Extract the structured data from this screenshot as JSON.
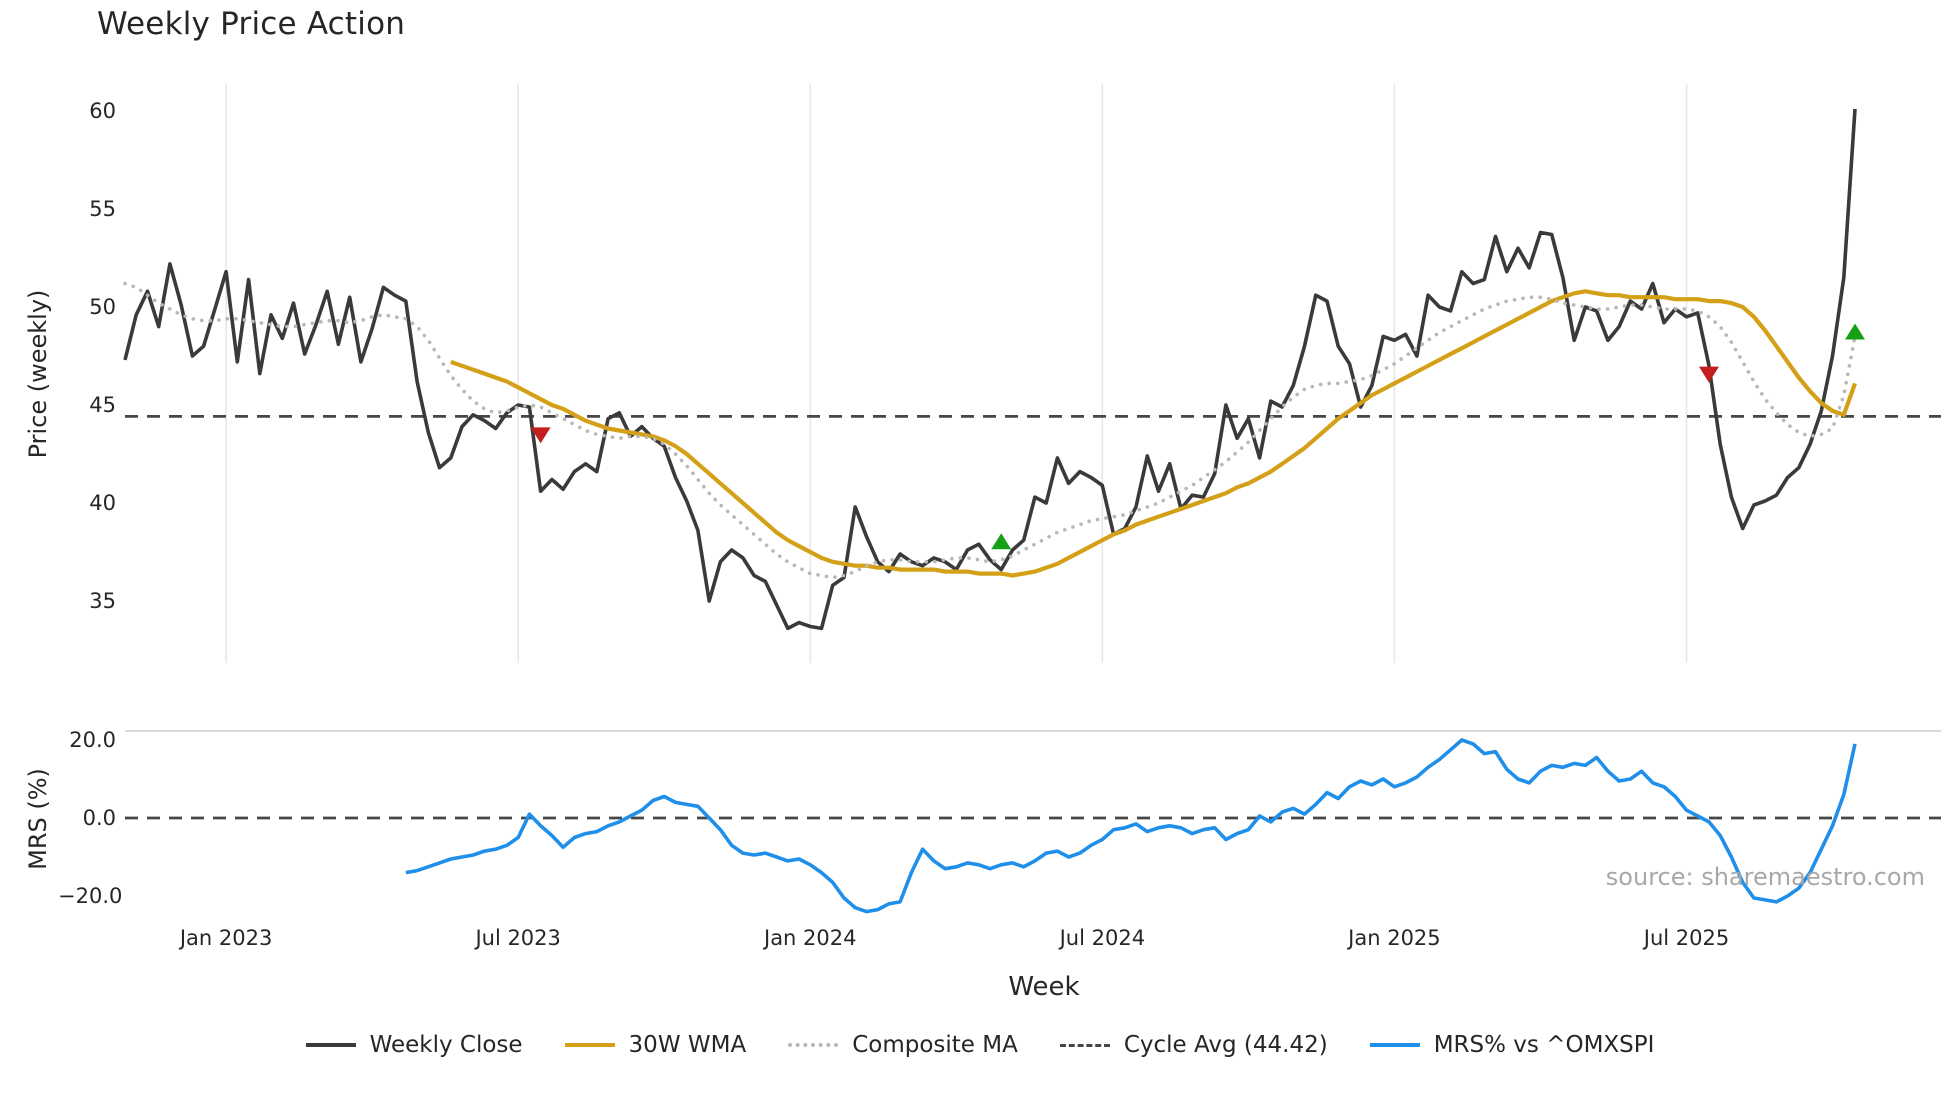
{
  "title": "Weekly Price Action",
  "watermark": "source: sharemaestro.com",
  "axes": {
    "price_ylabel": "Price (weekly)",
    "mrs_ylabel": "MRS (%)",
    "xlabel": "Week"
  },
  "legend": [
    {
      "label": "Weekly Close",
      "style": "solid",
      "color": "#3a3a3a"
    },
    {
      "label": "30W WMA",
      "style": "solid",
      "color": "#d4a017"
    },
    {
      "label": "Composite MA",
      "style": "dotted",
      "color": "#b8b8b8"
    },
    {
      "label": "Cycle Avg (44.42)",
      "style": "dashed",
      "color": "#474747"
    },
    {
      "label": "MRS% vs ^OMXSPI",
      "style": "solid",
      "color": "#1f8fea"
    }
  ],
  "chart_data": {
    "type": "line",
    "title": "Weekly Price Action",
    "xlabel": "Week",
    "x_unit": "weekly index, Nov 2022 - Oct 2025",
    "grid": "vertical gridlines at half-year ticks (price panel only)",
    "legend_position": "bottom center",
    "x_ticks": [
      {
        "index": 9,
        "label": "Jan 2023"
      },
      {
        "index": 35,
        "label": "Jul 2023"
      },
      {
        "index": 61,
        "label": "Jan 2024"
      },
      {
        "index": 87,
        "label": "Jul 2024"
      },
      {
        "index": 113,
        "label": "Jan 2025"
      },
      {
        "index": 139,
        "label": "Jul 2025"
      }
    ],
    "price_panel": {
      "ylabel": "Price (weekly)",
      "ylim": [
        33,
        61.5
      ],
      "yticks": [
        35,
        40,
        45,
        50,
        55,
        60
      ],
      "ytick_labels": [
        "35",
        "40",
        "45",
        "50",
        "55",
        "60"
      ],
      "cycle_avg": 44.42,
      "cycle_avg_color": "#474747",
      "series": [
        {
          "name": "Weekly Close",
          "color": "#3a3a3a",
          "style": "solid",
          "values": [
            47.3,
            49.6,
            50.8,
            49.0,
            52.2,
            50.1,
            47.5,
            48.0,
            49.9,
            51.8,
            47.2,
            51.4,
            46.6,
            49.6,
            48.4,
            50.2,
            47.6,
            49.1,
            50.8,
            48.1,
            50.5,
            47.2,
            48.9,
            51.0,
            50.6,
            50.3,
            46.2,
            43.6,
            41.8,
            42.3,
            43.9,
            44.5,
            44.2,
            43.8,
            44.6,
            45.0,
            44.9,
            40.6,
            41.2,
            40.7,
            41.6,
            42.0,
            41.6,
            44.3,
            44.6,
            43.4,
            43.9,
            43.3,
            42.9,
            41.3,
            40.1,
            38.6,
            35.0,
            37.0,
            37.6,
            37.2,
            36.3,
            36.0,
            34.8,
            33.6,
            33.9,
            33.7,
            33.6,
            35.8,
            36.2,
            39.8,
            38.3,
            37.0,
            36.5,
            37.4,
            37.0,
            36.8,
            37.2,
            37.0,
            36.6,
            37.6,
            37.9,
            37.1,
            36.6,
            37.6,
            38.1,
            40.3,
            40.0,
            42.3,
            41.0,
            41.6,
            41.3,
            40.9,
            38.4,
            38.7,
            39.8,
            42.4,
            40.6,
            42.0,
            39.7,
            40.4,
            40.3,
            41.5,
            45.0,
            43.3,
            44.3,
            42.3,
            45.2,
            44.9,
            46.0,
            48.0,
            50.6,
            50.3,
            48.0,
            47.1,
            44.9,
            46.0,
            48.5,
            48.3,
            48.6,
            47.5,
            50.6,
            50.0,
            49.8,
            51.8,
            51.2,
            51.4,
            53.6,
            51.8,
            53.0,
            52.0,
            53.8,
            53.7,
            51.5,
            48.3,
            50.0,
            49.8,
            48.3,
            49.0,
            50.3,
            49.9,
            51.2,
            49.2,
            49.9,
            49.5,
            49.7,
            47.0,
            43.0,
            40.3,
            38.7,
            39.9,
            40.1,
            40.4,
            41.3,
            41.8,
            43.0,
            44.7,
            47.5,
            51.5,
            60.1
          ]
        },
        {
          "name": "30W WMA",
          "color": "#d4a017",
          "style": "solid",
          "values": [
            null,
            null,
            null,
            null,
            null,
            null,
            null,
            null,
            null,
            null,
            null,
            null,
            null,
            null,
            null,
            null,
            null,
            null,
            null,
            null,
            null,
            null,
            null,
            null,
            null,
            null,
            null,
            null,
            null,
            47.2,
            47.0,
            46.8,
            46.6,
            46.4,
            46.2,
            45.9,
            45.6,
            45.3,
            45.0,
            44.8,
            44.5,
            44.2,
            44.0,
            43.8,
            43.7,
            43.6,
            43.5,
            43.4,
            43.2,
            42.9,
            42.5,
            42.0,
            41.5,
            41.0,
            40.5,
            40.0,
            39.5,
            39.0,
            38.5,
            38.1,
            37.8,
            37.5,
            37.2,
            37.0,
            36.9,
            36.8,
            36.8,
            36.7,
            36.7,
            36.6,
            36.6,
            36.6,
            36.6,
            36.5,
            36.5,
            36.5,
            36.4,
            36.4,
            36.4,
            36.3,
            36.4,
            36.5,
            36.7,
            36.9,
            37.2,
            37.5,
            37.8,
            38.1,
            38.4,
            38.6,
            38.9,
            39.1,
            39.3,
            39.5,
            39.7,
            39.9,
            40.1,
            40.3,
            40.5,
            40.8,
            41.0,
            41.3,
            41.6,
            42.0,
            42.4,
            42.8,
            43.3,
            43.8,
            44.3,
            44.7,
            45.1,
            45.5,
            45.8,
            46.1,
            46.4,
            46.7,
            47.0,
            47.3,
            47.6,
            47.9,
            48.2,
            48.5,
            48.8,
            49.1,
            49.4,
            49.7,
            50.0,
            50.3,
            50.5,
            50.7,
            50.8,
            50.7,
            50.6,
            50.6,
            50.5,
            50.5,
            50.5,
            50.5,
            50.4,
            50.4,
            50.4,
            50.3,
            50.3,
            50.2,
            50.0,
            49.5,
            48.8,
            48.0,
            47.2,
            46.4,
            45.7,
            45.1,
            44.7,
            44.5,
            46.1
          ]
        },
        {
          "name": "Composite MA",
          "color": "#b8b8b8",
          "style": "dotted",
          "values": [
            51.2,
            51.0,
            50.6,
            50.2,
            49.9,
            49.6,
            49.4,
            49.3,
            49.3,
            49.4,
            49.4,
            49.3,
            49.2,
            49.1,
            49.0,
            49.0,
            49.1,
            49.2,
            49.3,
            49.3,
            49.2,
            49.3,
            49.5,
            49.6,
            49.5,
            49.4,
            49.0,
            48.3,
            47.4,
            46.5,
            45.8,
            45.2,
            44.8,
            44.6,
            44.7,
            44.9,
            45.0,
            44.9,
            44.6,
            44.3,
            44.0,
            43.7,
            43.5,
            43.4,
            43.3,
            43.4,
            43.4,
            43.3,
            43.0,
            42.5,
            41.9,
            41.2,
            40.5,
            39.9,
            39.4,
            38.9,
            38.4,
            37.9,
            37.4,
            37.0,
            36.7,
            36.4,
            36.3,
            36.2,
            36.3,
            36.5,
            36.8,
            37.0,
            37.1,
            37.1,
            37.0,
            37.0,
            37.0,
            37.1,
            37.2,
            37.2,
            37.1,
            37.0,
            37.1,
            37.3,
            37.6,
            37.9,
            38.2,
            38.5,
            38.7,
            38.9,
            39.1,
            39.2,
            39.3,
            39.4,
            39.6,
            39.8,
            40.0,
            40.3,
            40.6,
            40.9,
            41.3,
            41.7,
            42.1,
            42.6,
            43.1,
            43.7,
            44.3,
            44.9,
            45.4,
            45.8,
            46.0,
            46.1,
            46.1,
            46.2,
            46.3,
            46.5,
            46.8,
            47.1,
            47.5,
            47.9,
            48.3,
            48.7,
            49.0,
            49.3,
            49.6,
            49.9,
            50.1,
            50.3,
            50.4,
            50.5,
            50.5,
            50.4,
            50.2,
            50.1,
            50.0,
            49.9,
            49.9,
            50.0,
            50.1,
            50.1,
            50.0,
            49.9,
            49.9,
            49.9,
            49.8,
            49.5,
            49.0,
            48.2,
            47.2,
            46.2,
            45.3,
            44.6,
            44.0,
            43.6,
            43.4,
            43.5,
            43.8,
            45.5,
            48.5
          ]
        }
      ],
      "markers": [
        {
          "type": "sell",
          "shape": "triangle-down",
          "index": 37,
          "value": 43.5,
          "color": "#c41e1e"
        },
        {
          "type": "buy",
          "shape": "triangle-up",
          "index": 78,
          "value": 38.0,
          "color": "#16a016"
        },
        {
          "type": "sell",
          "shape": "triangle-down",
          "index": 141,
          "value": 46.6,
          "color": "#c41e1e"
        },
        {
          "type": "buy",
          "shape": "triangle-up",
          "index": 154,
          "value": 48.7,
          "color": "#16a016"
        }
      ]
    },
    "mrs_panel": {
      "ylabel": "MRS (%)",
      "ylim": [
        -24.5,
        22.5
      ],
      "yticks": [
        20,
        0,
        -20
      ],
      "ytick_labels": [
        "20.0",
        "0.0",
        "−20.0"
      ],
      "zero_line": 0,
      "zero_line_color": "#474747",
      "series": [
        {
          "name": "MRS% vs ^OMXSPI",
          "color": "#1f8fea",
          "style": "solid",
          "values": [
            null,
            null,
            null,
            null,
            null,
            null,
            null,
            null,
            null,
            null,
            null,
            null,
            null,
            null,
            null,
            null,
            null,
            null,
            null,
            null,
            null,
            null,
            null,
            null,
            null,
            -14.0,
            -13.5,
            -12.5,
            -11.5,
            -10.5,
            -10.0,
            -9.5,
            -8.5,
            -8.0,
            -7.0,
            -5.0,
            1.0,
            -2.0,
            -4.5,
            -7.5,
            -5.0,
            -4.0,
            -3.5,
            -2.0,
            -1.0,
            0.5,
            2.0,
            4.5,
            5.5,
            4.0,
            3.5,
            3.0,
            0.0,
            -3.0,
            -7.0,
            -9.0,
            -9.5,
            -9.0,
            -10.0,
            -11.0,
            -10.5,
            -12.0,
            -14.0,
            -16.5,
            -20.5,
            -23.0,
            -24.0,
            -23.5,
            -22.0,
            -21.5,
            -14.0,
            -8.0,
            -11.0,
            -13.0,
            -12.5,
            -11.5,
            -12.0,
            -13.0,
            -12.0,
            -11.5,
            -12.5,
            -11.0,
            -9.0,
            -8.5,
            -10.0,
            -9.0,
            -7.0,
            -5.5,
            -3.0,
            -2.5,
            -1.5,
            -3.5,
            -2.5,
            -2.0,
            -2.5,
            -4.0,
            -3.0,
            -2.5,
            -5.5,
            -4.0,
            -3.0,
            0.5,
            -1.0,
            1.5,
            2.5,
            1.0,
            3.5,
            6.5,
            5.0,
            8.0,
            9.5,
            8.5,
            10.0,
            8.0,
            9.0,
            10.5,
            13.0,
            15.0,
            17.5,
            20.0,
            19.0,
            16.5,
            17.0,
            12.5,
            10.0,
            9.0,
            12.0,
            13.5,
            13.0,
            14.0,
            13.5,
            15.5,
            12.0,
            9.5,
            10.0,
            12.0,
            9.0,
            8.0,
            5.5,
            2.0,
            0.5,
            -1.0,
            -4.5,
            -10.0,
            -16.5,
            -20.5,
            -21.0,
            -21.5,
            -20.0,
            -18.0,
            -14.0,
            -8.0,
            -2.0,
            6.0,
            19.0
          ]
        }
      ]
    }
  }
}
